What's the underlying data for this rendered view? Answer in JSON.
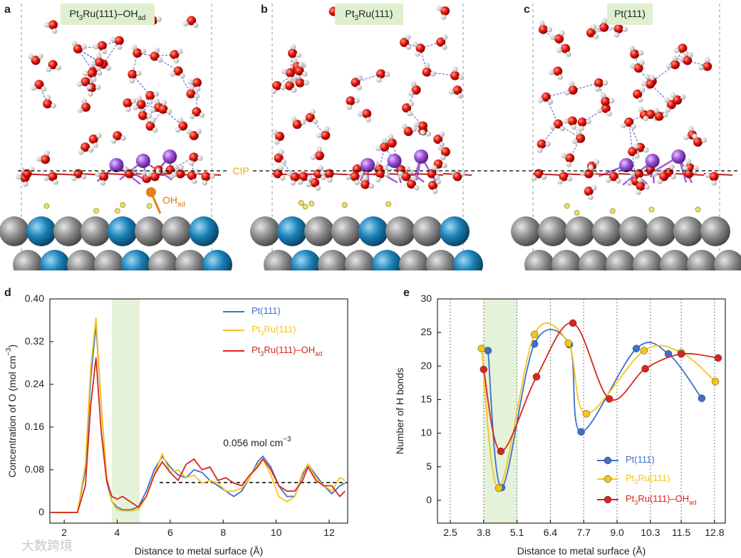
{
  "panels": {
    "labels": [
      "a",
      "b",
      "c",
      "d",
      "e"
    ],
    "titles": [
      "Pt3Ru(111)–OHad",
      "Pt3Ru(111)",
      "Pt(111)"
    ],
    "cip": "CIP",
    "ohad": "OHad",
    "watermark": "大数跨境"
  },
  "chart_data": [
    {
      "type": "line",
      "x_label": "Distance to metal surface (Å)",
      "y_label": "Concentration of O (mol cm−3)",
      "xlim": [
        1.46,
        12.7
      ],
      "ylim": [
        -0.02,
        0.4
      ],
      "xticks": [
        2,
        4,
        6,
        8,
        10,
        12
      ],
      "yticks": [
        0,
        0.08,
        0.16,
        0.24,
        0.32,
        {
          "value": 0.4,
          "label": "0.40"
        }
      ],
      "highlight": [
        3.8,
        4.85
      ],
      "highlight_color": "#e3f2d9",
      "reference": {
        "value": 0.056,
        "x_start": 5.6,
        "label": "0.056 mol cm−3"
      },
      "legend": "upper right",
      "x": [
        1.5,
        2.5,
        2.8,
        3.0,
        3.2,
        3.4,
        3.6,
        3.8,
        4.0,
        4.2,
        4.5,
        4.8,
        5.1,
        5.4,
        5.7,
        6.0,
        6.3,
        6.6,
        6.9,
        7.2,
        7.5,
        7.8,
        8.1,
        8.4,
        8.7,
        9.0,
        9.3,
        9.5,
        9.8,
        10.1,
        10.4,
        10.7,
        11.0,
        11.2,
        11.5,
        11.8,
        12.1,
        12.4,
        12.6
      ],
      "series": [
        {
          "name": "Pt(111)",
          "color": "#3f6fcb",
          "values": [
            0,
            0,
            0.08,
            0.25,
            0.352,
            0.2,
            0.06,
            0.02,
            0.01,
            0.005,
            0.005,
            0.01,
            0.04,
            0.08,
            0.105,
            0.085,
            0.07,
            0.065,
            0.08,
            0.075,
            0.06,
            0.05,
            0.04,
            0.03,
            0.04,
            0.065,
            0.095,
            0.105,
            0.085,
            0.05,
            0.03,
            0.03,
            0.07,
            0.09,
            0.07,
            0.05,
            0.035,
            0.05,
            0.055
          ]
        },
        {
          "name": "Pt3Ru(111)",
          "color": "#f5c518",
          "values": [
            0,
            0,
            0.09,
            0.27,
            0.365,
            0.2,
            0.07,
            0.02,
            0.005,
            0.003,
            0.003,
            0.005,
            0.03,
            0.07,
            0.11,
            0.075,
            0.08,
            0.065,
            0.07,
            0.055,
            0.06,
            0.055,
            0.04,
            0.04,
            0.045,
            0.065,
            0.09,
            0.1,
            0.07,
            0.03,
            0.02,
            0.03,
            0.075,
            0.09,
            0.065,
            0.05,
            0.04,
            0.065,
            0.06
          ]
        },
        {
          "name": "Pt3Ru(111)–OHad",
          "color": "#d8261c",
          "values": [
            0,
            0,
            0.05,
            0.2,
            0.29,
            0.15,
            0.06,
            0.03,
            0.025,
            0.03,
            0.02,
            0.01,
            0.03,
            0.07,
            0.095,
            0.075,
            0.06,
            0.09,
            0.1,
            0.08,
            0.085,
            0.06,
            0.065,
            0.055,
            0.05,
            0.07,
            0.085,
            0.1,
            0.08,
            0.05,
            0.04,
            0.04,
            0.06,
            0.085,
            0.06,
            0.05,
            0.05,
            0.03,
            0.04
          ]
        }
      ]
    },
    {
      "type": "spline",
      "x_label": "Distance to metal surface (Å)",
      "y_label": "Number of H bonds",
      "xlim": [
        2.0,
        13.22
      ],
      "ylim": [
        -3.4,
        30
      ],
      "xticks": [
        2.5,
        3.8,
        5.1,
        6.4,
        7.7,
        {
          "value": 9,
          "label": "9.0"
        },
        10.3,
        11.5,
        12.8
      ],
      "yticks": [
        0,
        5,
        10,
        15,
        20,
        25,
        30
      ],
      "grid": true,
      "highlight": [
        3.8,
        5.1
      ],
      "highlight_color": "#e3f2d9",
      "legend": "lower right",
      "series": [
        {
          "name": "Pt(111)",
          "color": "#3f6fcb",
          "x": [
            3.97,
            4.5,
            5.78,
            7.14,
            7.6,
            9.75,
            11.0,
            12.3
          ],
          "values": [
            22.3,
            1.9,
            23.3,
            23.2,
            10.2,
            22.6,
            21.8,
            15.2
          ]
        },
        {
          "name": "Pt3Ru(111)",
          "color": "#f5c518",
          "x": [
            3.72,
            4.39,
            5.78,
            7.1,
            7.8,
            10.05,
            11.5,
            12.83
          ],
          "values": [
            22.6,
            1.8,
            24.7,
            23.4,
            12.9,
            22.3,
            22.0,
            17.7
          ]
        },
        {
          "name": "Pt3Ru(111)–OHad",
          "color": "#d8261c",
          "x": [
            3.8,
            4.47,
            5.86,
            7.28,
            8.7,
            10.1,
            11.5,
            12.94
          ],
          "values": [
            19.5,
            7.3,
            18.4,
            26.4,
            15.1,
            19.6,
            21.8,
            21.2
          ]
        }
      ]
    }
  ]
}
